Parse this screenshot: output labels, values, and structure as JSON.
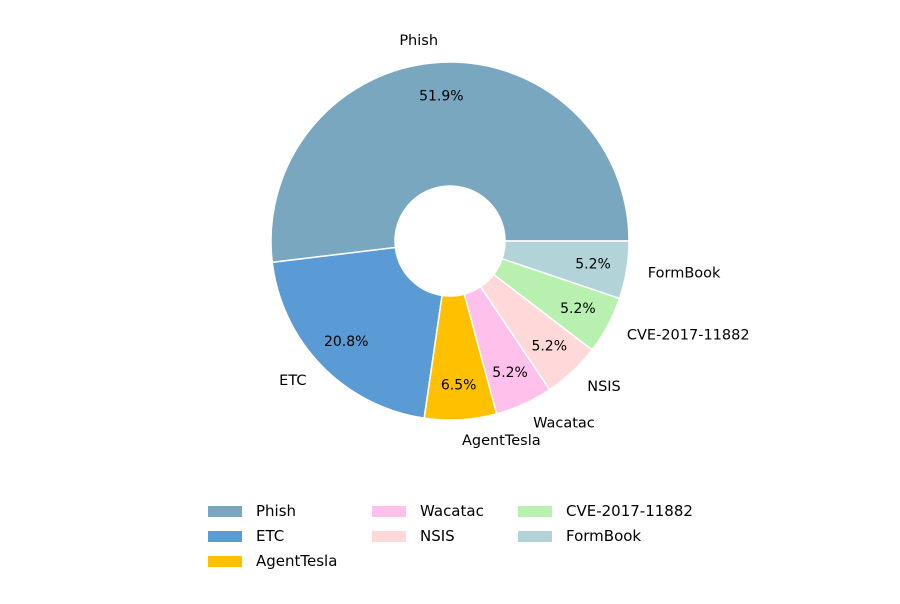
{
  "chart_data": {
    "type": "pie",
    "donut": true,
    "categories": [
      "Phish",
      "ETC",
      "AgentTesla",
      "Wacatac",
      "NSIS",
      "CVE-2017-11882",
      "FormBook"
    ],
    "values": [
      51.9,
      20.8,
      6.5,
      5.2,
      5.2,
      5.2,
      5.2
    ],
    "value_labels": [
      "51.9%",
      "20.8%",
      "6.5%",
      "5.2%",
      "5.2%",
      "5.2%",
      "5.2%"
    ],
    "colors": [
      "#7aa7c0",
      "#5b9bd5",
      "#ffc000",
      "#ffc0ec",
      "#ffd9d9",
      "#b8f0b0",
      "#b2d3d8"
    ],
    "start_angle_deg": 0,
    "direction": "counterclockwise",
    "legend_placement": "bottom-center",
    "legend_columns": 3
  }
}
